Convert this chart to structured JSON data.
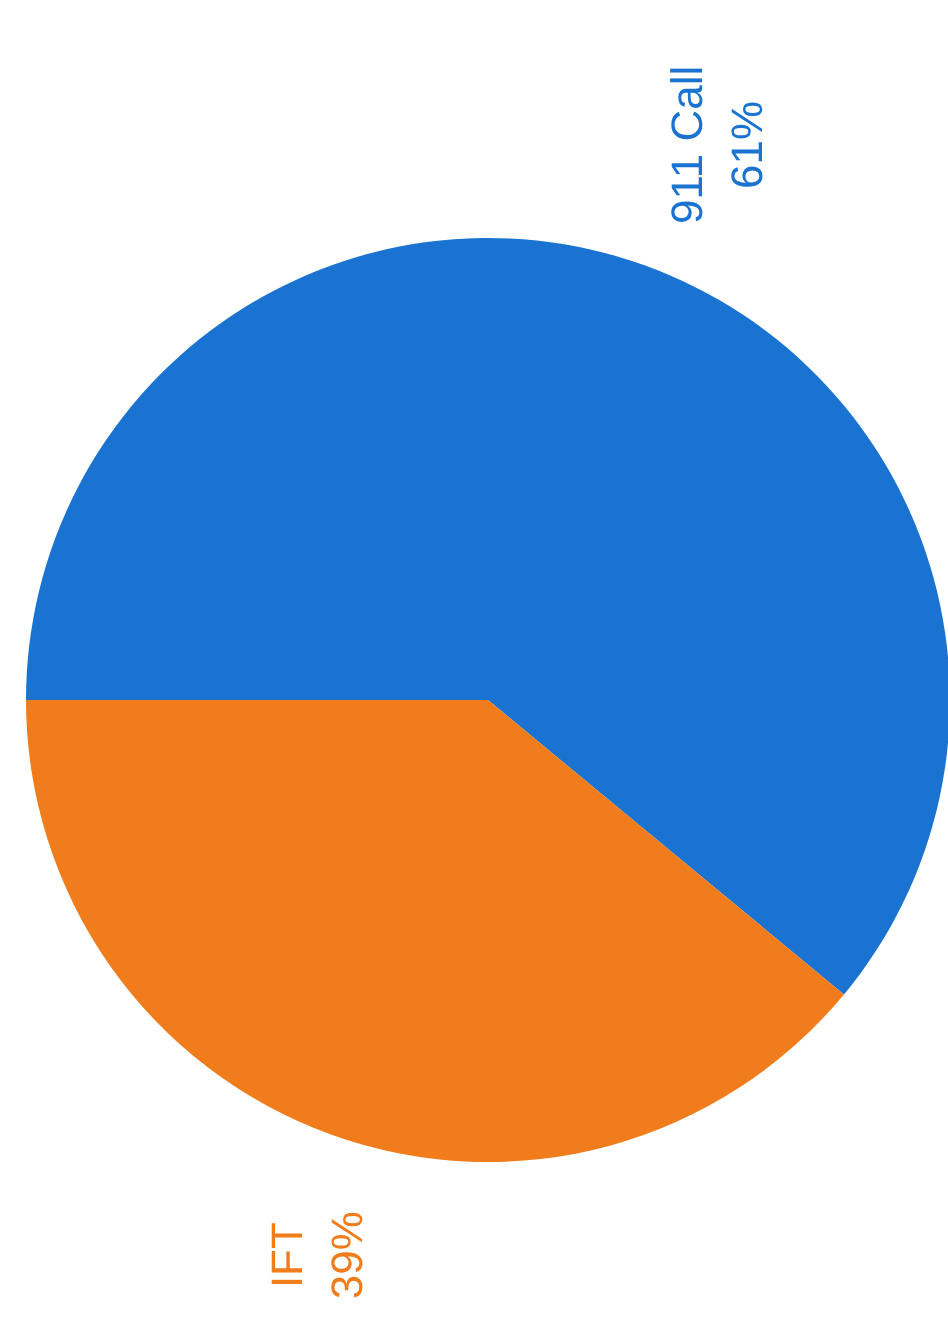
{
  "chart_data": {
    "type": "pie",
    "categories": [
      "911 Call",
      "IFT"
    ],
    "values": [
      61,
      39
    ],
    "colors": [
      "#1a73d0",
      "#f07c1c"
    ],
    "value_labels": [
      "61%",
      "39%"
    ],
    "legend": false
  }
}
